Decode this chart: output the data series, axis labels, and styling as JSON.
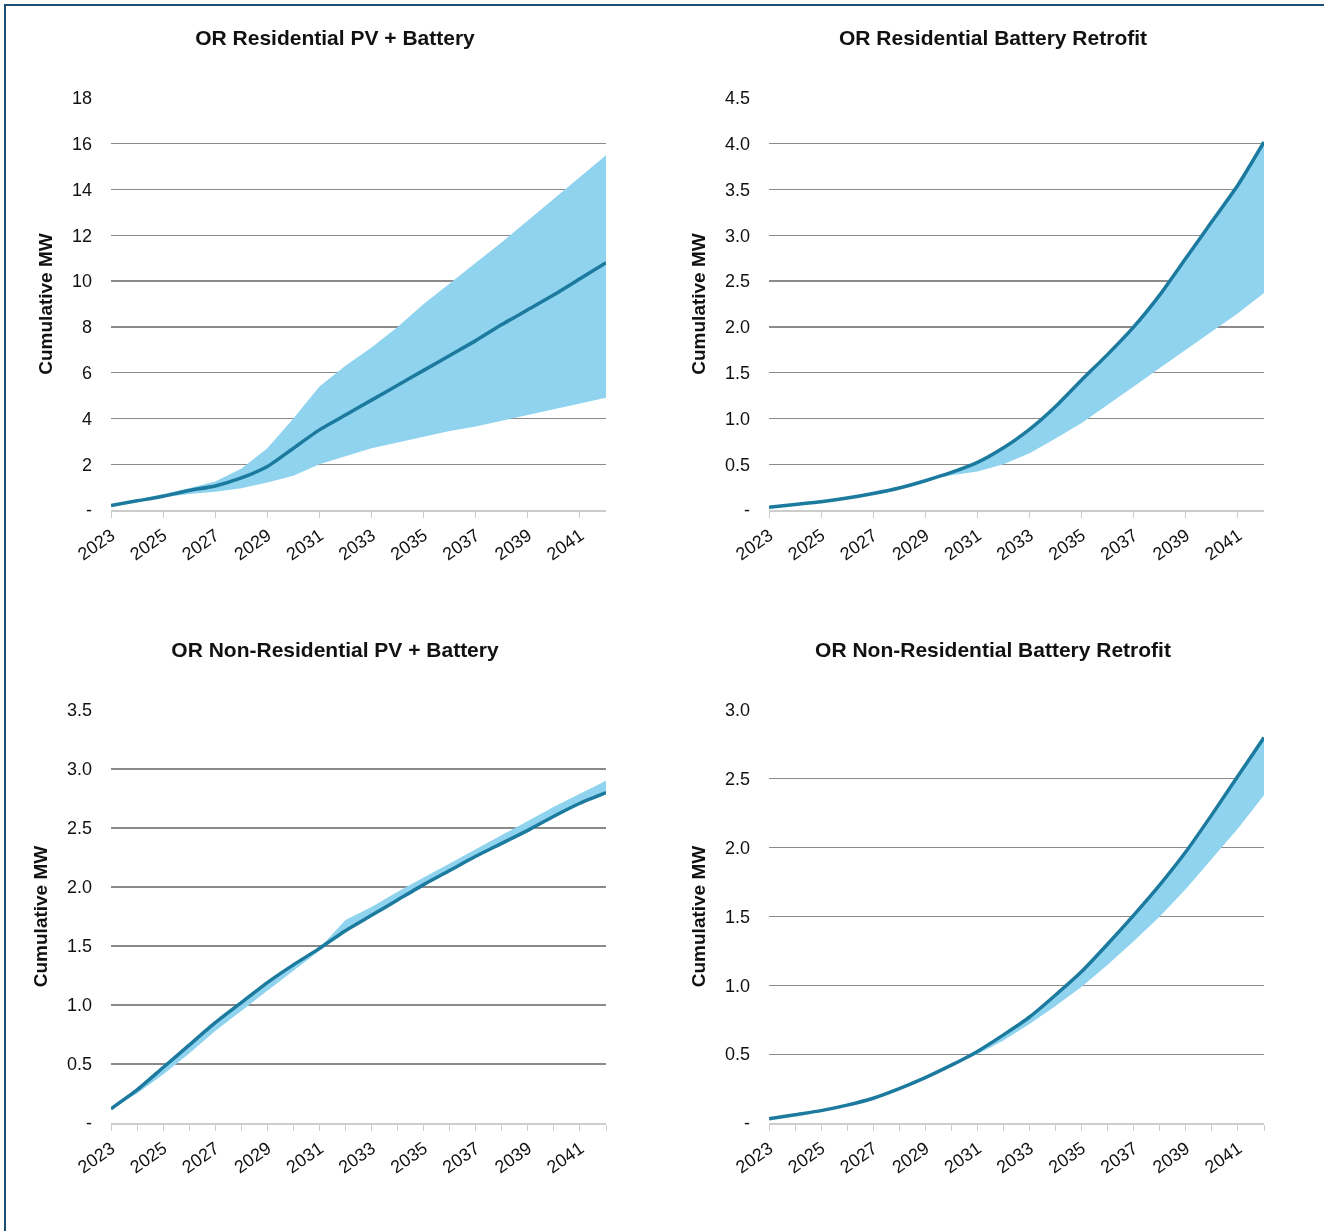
{
  "chart_data": [
    {
      "type": "line",
      "title": "OR Residential PV + Battery",
      "ylabel": "Cumulative MW",
      "x": [
        2023,
        2024,
        2025,
        2026,
        2027,
        2028,
        2029,
        2030,
        2031,
        2032,
        2033,
        2034,
        2035,
        2036,
        2037,
        2038,
        2039,
        2040,
        2041,
        2042
      ],
      "xlim": [
        2023,
        2042
      ],
      "xticks": [
        2023,
        2025,
        2027,
        2029,
        2031,
        2033,
        2035,
        2037,
        2039,
        2041
      ],
      "ylim": [
        0,
        18
      ],
      "yticks": [
        {
          "value": 0,
          "label": "-"
        },
        2,
        4,
        6,
        8,
        10,
        12,
        14,
        16,
        18
      ],
      "grid": "y",
      "series": [
        {
          "color": "#1b7a9e",
          "values": [
            0.2,
            0.4,
            0.6,
            0.85,
            1.05,
            1.4,
            1.9,
            2.7,
            3.5,
            4.15,
            4.8,
            5.45,
            6.1,
            6.75,
            7.4,
            8.1,
            8.75,
            9.4,
            10.1,
            10.8
          ],
          "lower": [
            0.2,
            0.4,
            0.55,
            0.7,
            0.8,
            0.95,
            1.2,
            1.5,
            2.0,
            2.35,
            2.7,
            2.95,
            3.2,
            3.45,
            3.65,
            3.9,
            4.15,
            4.4,
            4.65,
            4.9
          ],
          "upper": [
            0.2,
            0.45,
            0.7,
            0.95,
            1.25,
            1.8,
            2.7,
            4.0,
            5.4,
            6.3,
            7.1,
            8.0,
            9.0,
            9.9,
            10.8,
            11.7,
            12.65,
            13.6,
            14.55,
            15.5
          ]
        }
      ]
    },
    {
      "type": "line",
      "title": "OR Residential Battery Retrofit",
      "ylabel": "Cumulative MW",
      "x": [
        2023,
        2024,
        2025,
        2026,
        2027,
        2028,
        2029,
        2030,
        2031,
        2032,
        2033,
        2034,
        2035,
        2036,
        2037,
        2038,
        2039,
        2040,
        2041,
        2042
      ],
      "xlim": [
        2023,
        2042
      ],
      "xticks": [
        2023,
        2025,
        2027,
        2029,
        2031,
        2033,
        2035,
        2037,
        2039,
        2041
      ],
      "ylim": [
        0,
        4.5
      ],
      "yticks": [
        {
          "value": 0,
          "label": "-"
        },
        0.5,
        {
          "value": 1,
          "label": "1.0"
        },
        1.5,
        {
          "value": 2,
          "label": "2.0"
        },
        2.5,
        {
          "value": 3,
          "label": "3.0"
        },
        3.5,
        {
          "value": 4,
          "label": "4.0"
        },
        4.5
      ],
      "grid": "y",
      "series": [
        {
          "color": "#1b7a9e",
          "values": [
            0.03,
            0.06,
            0.09,
            0.13,
            0.18,
            0.24,
            0.32,
            0.41,
            0.52,
            0.68,
            0.88,
            1.13,
            1.42,
            1.7,
            2.0,
            2.35,
            2.75,
            3.15,
            3.55,
            4.02
          ],
          "lower": [
            0.03,
            0.06,
            0.09,
            0.13,
            0.18,
            0.24,
            0.32,
            0.38,
            0.42,
            0.5,
            0.62,
            0.78,
            0.95,
            1.15,
            1.35,
            1.55,
            1.75,
            1.95,
            2.15,
            2.37
          ],
          "upper": [
            0.03,
            0.06,
            0.09,
            0.13,
            0.18,
            0.24,
            0.32,
            0.41,
            0.52,
            0.68,
            0.88,
            1.13,
            1.42,
            1.7,
            2.0,
            2.35,
            2.75,
            3.15,
            3.55,
            4.02
          ]
        }
      ]
    },
    {
      "type": "line",
      "title": "OR Non-Residential PV + Battery",
      "ylabel": "Cumulative MW",
      "x": [
        2023,
        2024,
        2025,
        2026,
        2027,
        2028,
        2029,
        2030,
        2031,
        2032,
        2033,
        2034,
        2035,
        2036,
        2037,
        2038,
        2039,
        2040,
        2041,
        2042
      ],
      "xlim": [
        2023,
        2042
      ],
      "xticks": [
        2023,
        {
          "value": 2024,
          "label": null
        },
        2025,
        {
          "value": 2026,
          "label": null
        },
        2027,
        {
          "value": 2028,
          "label": null
        },
        2029,
        {
          "value": 2030,
          "label": null
        },
        2031,
        {
          "value": 2032,
          "label": null
        },
        2033,
        {
          "value": 2034,
          "label": null
        },
        2035,
        {
          "value": 2036,
          "label": null
        },
        2037,
        {
          "value": 2038,
          "label": null
        },
        2039,
        {
          "value": 2040,
          "label": null
        },
        2041,
        {
          "value": 2042,
          "label": null
        }
      ],
      "ylim": [
        0,
        3.5
      ],
      "yticks": [
        {
          "value": 0,
          "label": "-"
        },
        0.5,
        {
          "value": 1,
          "label": "1.0"
        },
        1.5,
        {
          "value": 2,
          "label": "2.0"
        },
        2.5,
        {
          "value": 3,
          "label": "3.0"
        },
        3.5
      ],
      "grid": "y",
      "series": [
        {
          "color": "#1b7a9e",
          "values": [
            0.12,
            0.28,
            0.47,
            0.66,
            0.85,
            1.02,
            1.19,
            1.34,
            1.48,
            1.63,
            1.76,
            1.89,
            2.02,
            2.14,
            2.26,
            2.37,
            2.48,
            2.6,
            2.71,
            2.8
          ],
          "lower": [
            0.12,
            0.25,
            0.41,
            0.59,
            0.78,
            0.95,
            1.12,
            1.29,
            1.46,
            1.63,
            1.76,
            1.89,
            2.02,
            2.14,
            2.26,
            2.37,
            2.48,
            2.6,
            2.71,
            2.8
          ],
          "upper": [
            0.12,
            0.28,
            0.47,
            0.66,
            0.85,
            1.02,
            1.19,
            1.34,
            1.48,
            1.72,
            1.83,
            1.96,
            2.08,
            2.2,
            2.32,
            2.44,
            2.56,
            2.68,
            2.79,
            2.9
          ]
        }
      ]
    },
    {
      "type": "line",
      "title": "OR Non-Residential Battery Retrofit",
      "ylabel": "Cumulative MW",
      "x": [
        2023,
        2024,
        2025,
        2026,
        2027,
        2028,
        2029,
        2030,
        2031,
        2032,
        2033,
        2034,
        2035,
        2036,
        2037,
        2038,
        2039,
        2040,
        2041,
        2042
      ],
      "xlim": [
        2023,
        2042
      ],
      "xticks": [
        2023,
        {
          "value": 2024,
          "label": null
        },
        2025,
        {
          "value": 2026,
          "label": null
        },
        2027,
        {
          "value": 2028,
          "label": null
        },
        2029,
        {
          "value": 2030,
          "label": null
        },
        2031,
        {
          "value": 2032,
          "label": null
        },
        2033,
        {
          "value": 2034,
          "label": null
        },
        2035,
        {
          "value": 2036,
          "label": null
        },
        2037,
        {
          "value": 2038,
          "label": null
        },
        2039,
        {
          "value": 2040,
          "label": null
        },
        2041,
        {
          "value": 2042,
          "label": null
        }
      ],
      "ylim": [
        0,
        3.0
      ],
      "yticks": [
        {
          "value": 0,
          "label": "-"
        },
        0.5,
        {
          "value": 1,
          "label": "1.0"
        },
        1.5,
        {
          "value": 2,
          "label": "2.0"
        },
        2.5,
        {
          "value": 3,
          "label": "3.0"
        }
      ],
      "grid": "y",
      "series": [
        {
          "color": "#1b7a9e",
          "values": [
            0.03,
            0.06,
            0.09,
            0.13,
            0.18,
            0.25,
            0.33,
            0.42,
            0.52,
            0.64,
            0.77,
            0.93,
            1.1,
            1.3,
            1.51,
            1.73,
            1.97,
            2.24,
            2.52,
            2.8
          ],
          "lower": [
            0.03,
            0.06,
            0.09,
            0.13,
            0.18,
            0.25,
            0.33,
            0.42,
            0.5,
            0.6,
            0.72,
            0.85,
            0.99,
            1.15,
            1.32,
            1.5,
            1.7,
            1.92,
            2.14,
            2.38
          ],
          "upper": [
            0.03,
            0.06,
            0.09,
            0.13,
            0.18,
            0.25,
            0.33,
            0.42,
            0.52,
            0.64,
            0.77,
            0.93,
            1.1,
            1.3,
            1.51,
            1.73,
            1.97,
            2.24,
            2.52,
            2.8
          ]
        }
      ]
    }
  ]
}
